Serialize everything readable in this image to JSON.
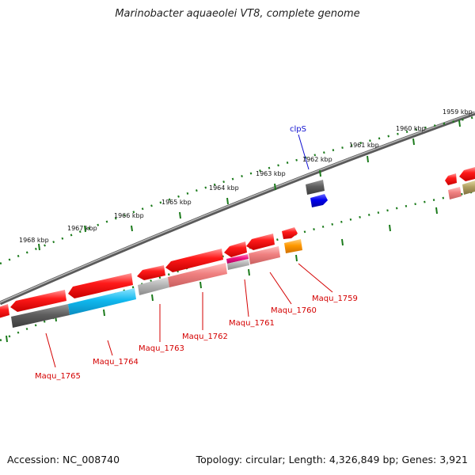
{
  "title": "Marinobacter aquaeolei VT8, complete genome",
  "footer": {
    "accession": "Accession: NC_008740",
    "summary": "Topology: circular; Length: 4,326,849 bp; Genes: 3,921"
  },
  "scale_labels": [
    "1968 kbp",
    "1967 kbp",
    "1966 kbp",
    "1965 kbp",
    "1964 kbp",
    "1963 kbp",
    "1962 kbp",
    "1961 kbp",
    "1960 kbp",
    "1959 kbp"
  ],
  "gene_name_labels": [
    "clpS"
  ],
  "locus_labels": [
    "Maqu_1765",
    "Maqu_1764",
    "Maqu_1763",
    "Maqu_1762",
    "Maqu_1761",
    "Maqu_1760",
    "Maqu_1759"
  ],
  "colors": {
    "cds": "#ff0000",
    "backbone": "#808080",
    "scale_ticks": "#1a7a1a",
    "locus_label": "#d40000",
    "gene_label": "#1010d0",
    "cog_gray": "#606060",
    "cog_cyan": "#10b8ee",
    "cog_lightgray": "#b4b4b4",
    "cog_salmon": "#f08080",
    "cog_magenta": "#ee1080",
    "cog_orange": "#ff9900",
    "cog_blue": "#0000ee",
    "cog_olive": "#b0a060"
  }
}
